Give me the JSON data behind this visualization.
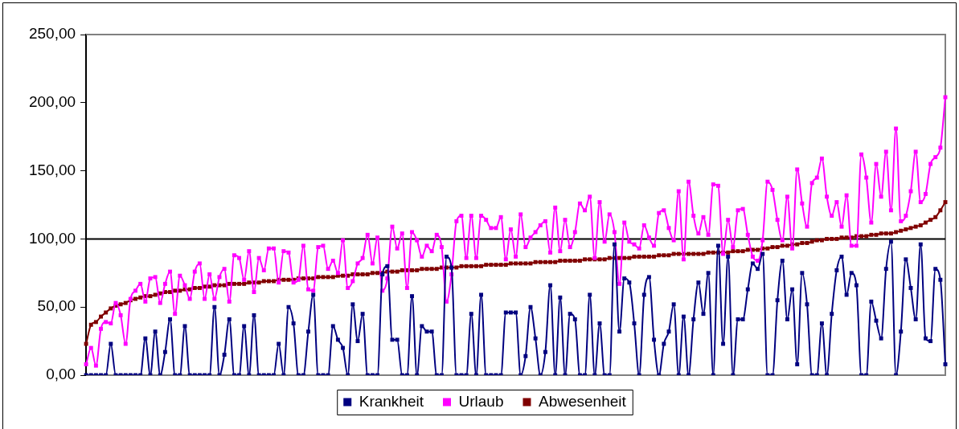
{
  "chart_data": {
    "type": "line",
    "categories": [
      null,
      null,
      null,
      null,
      null,
      null,
      null,
      null,
      null,
      null,
      null,
      null,
      null,
      null,
      null,
      null,
      null,
      null,
      null,
      null,
      null,
      null,
      null,
      null,
      null,
      null,
      null,
      null,
      null,
      null,
      null,
      null,
      null,
      null,
      null,
      null,
      null,
      null,
      null,
      null,
      null,
      null,
      null,
      null,
      null,
      null,
      null,
      null,
      null,
      null,
      null,
      null,
      null,
      null,
      null,
      null,
      null,
      null,
      null,
      null,
      null,
      null,
      null,
      null,
      null,
      null,
      null,
      null,
      null,
      null,
      null,
      null,
      null,
      null,
      null,
      null,
      null,
      null,
      null,
      null,
      null,
      null,
      null,
      null,
      null,
      null,
      null,
      null,
      null,
      null,
      null,
      null,
      null,
      null,
      null,
      null,
      null,
      null,
      null,
      null,
      null,
      null,
      null,
      null,
      null,
      null,
      null,
      null,
      null,
      null,
      null,
      null,
      null,
      null,
      null,
      null,
      null,
      null,
      null,
      null,
      null,
      null,
      null,
      null,
      null,
      null,
      null,
      null,
      null,
      null,
      null,
      null,
      null,
      null,
      null,
      null,
      null,
      null,
      null,
      null,
      null,
      null,
      null,
      null,
      null,
      null,
      null,
      null,
      null,
      null,
      null,
      null,
      null,
      null,
      null,
      null,
      null,
      null,
      null,
      null,
      null,
      null,
      null,
      null,
      null,
      null,
      null,
      null,
      null,
      null,
      null,
      null,
      null,
      null,
      null
    ],
    "series": [
      {
        "name": "Krankheit",
        "color": "#000080",
        "values": [
          0,
          0,
          0,
          0,
          0,
          23,
          0,
          0,
          0,
          0,
          0,
          0,
          27,
          0,
          32,
          0,
          17,
          41,
          0,
          0,
          36,
          0,
          0,
          0,
          0,
          0,
          50,
          0,
          15,
          41,
          0,
          0,
          36,
          0,
          44,
          0,
          0,
          0,
          0,
          23,
          0,
          50,
          38,
          0,
          0,
          32,
          59,
          0,
          0,
          0,
          36,
          26,
          20,
          0,
          52,
          25,
          45,
          0,
          0,
          0,
          74,
          80,
          26,
          26,
          0,
          0,
          58,
          0,
          36,
          32,
          32,
          0,
          0,
          87,
          79,
          0,
          0,
          0,
          45,
          0,
          59,
          0,
          0,
          0,
          0,
          46,
          46,
          46,
          0,
          14,
          50,
          27,
          0,
          17,
          66,
          0,
          57,
          0,
          45,
          41,
          0,
          0,
          59,
          0,
          38,
          0,
          0,
          96,
          32,
          71,
          68,
          38,
          0,
          59,
          72,
          26,
          0,
          23,
          32,
          52,
          0,
          43,
          0,
          41,
          68,
          45,
          75,
          0,
          95,
          23,
          87,
          0,
          41,
          41,
          63,
          82,
          78,
          89,
          0,
          0,
          55,
          84,
          41,
          63,
          8,
          75,
          52,
          0,
          0,
          38,
          0,
          45,
          77,
          87,
          59,
          75,
          66,
          0,
          0,
          54,
          40,
          27,
          78,
          98,
          0,
          32,
          85,
          64,
          41,
          96,
          27,
          25,
          78,
          70,
          8
        ]
      },
      {
        "name": "Urlaub",
        "color": "#ff00ff",
        "values": [
          8,
          20,
          7,
          34,
          39,
          38,
          53,
          44,
          23,
          56,
          62,
          67,
          54,
          71,
          72,
          53,
          67,
          76,
          45,
          73,
          66,
          56,
          76,
          82,
          56,
          74,
          56,
          72,
          78,
          54,
          88,
          86,
          70,
          91,
          61,
          86,
          77,
          93,
          93,
          68,
          91,
          90,
          68,
          70,
          95,
          63,
          62,
          94,
          95,
          78,
          84,
          75,
          99,
          64,
          69,
          82,
          86,
          103,
          82,
          101,
          62,
          71,
          109,
          93,
          104,
          64,
          105,
          99,
          87,
          95,
          91,
          103,
          94,
          54,
          74,
          113,
          117,
          86,
          117,
          86,
          117,
          114,
          108,
          108,
          116,
          85,
          107,
          87,
          118,
          94,
          101,
          105,
          110,
          113,
          90,
          123,
          91,
          114,
          94,
          105,
          126,
          121,
          131,
          86,
          127,
          98,
          118,
          105,
          67,
          112,
          98,
          96,
          93,
          110,
          101,
          95,
          119,
          121,
          108,
          99,
          135,
          85,
          142,
          117,
          104,
          116,
          103,
          140,
          139,
          89,
          114,
          94,
          121,
          122,
          103,
          87,
          84,
          99,
          142,
          136,
          114,
          99,
          131,
          93,
          151,
          126,
          109,
          141,
          145,
          159,
          131,
          117,
          127,
          109,
          132,
          95,
          95,
          162,
          145,
          112,
          155,
          131,
          164,
          121,
          181,
          113,
          117,
          135,
          164,
          127,
          133,
          155,
          160,
          167,
          204
        ]
      },
      {
        "name": "Abwesenheit",
        "color": "#800000",
        "values": [
          23,
          37,
          39,
          43,
          46,
          49,
          51,
          52,
          53,
          55,
          56,
          57,
          58,
          58,
          59,
          60,
          61,
          61,
          62,
          62,
          63,
          63,
          64,
          64,
          65,
          65,
          66,
          66,
          66,
          67,
          67,
          67,
          67,
          68,
          68,
          68,
          69,
          69,
          69,
          70,
          70,
          70,
          70,
          71,
          71,
          71,
          71,
          72,
          72,
          72,
          72,
          73,
          73,
          73,
          74,
          74,
          74,
          74,
          75,
          75,
          75,
          76,
          76,
          76,
          77,
          77,
          77,
          77,
          78,
          78,
          78,
          78,
          79,
          79,
          79,
          79,
          80,
          80,
          80,
          80,
          80,
          81,
          81,
          81,
          81,
          81,
          82,
          82,
          82,
          82,
          82,
          83,
          83,
          83,
          83,
          83,
          84,
          84,
          84,
          84,
          84,
          85,
          85,
          85,
          85,
          85,
          86,
          86,
          86,
          86,
          86,
          87,
          87,
          87,
          87,
          87,
          88,
          88,
          88,
          89,
          89,
          89,
          89,
          89,
          89,
          89,
          90,
          90,
          90,
          90,
          90,
          91,
          91,
          91,
          92,
          92,
          92,
          93,
          93,
          94,
          94,
          95,
          95,
          96,
          96,
          97,
          97,
          98,
          99,
          99,
          100,
          100,
          100,
          101,
          101,
          101,
          102,
          102,
          102,
          103,
          103,
          104,
          104,
          104,
          105,
          106,
          107,
          108,
          109,
          110,
          112,
          114,
          116,
          121,
          127
        ]
      }
    ],
    "ylim": [
      0,
      250
    ],
    "yticks": [
      {
        "value": 0,
        "label": "0,00"
      },
      {
        "value": 50,
        "label": "50,00"
      },
      {
        "value": 100,
        "label": "100,00"
      },
      {
        "value": 150,
        "label": "150,00"
      },
      {
        "value": 200,
        "label": "200,00"
      },
      {
        "value": 250,
        "label": "250,00"
      }
    ],
    "ref_lines": [
      {
        "axis": "y",
        "value": 100,
        "color": "#000000"
      }
    ],
    "grid": false,
    "legend": "bottom",
    "marker": "square",
    "tick_labels": "y"
  }
}
